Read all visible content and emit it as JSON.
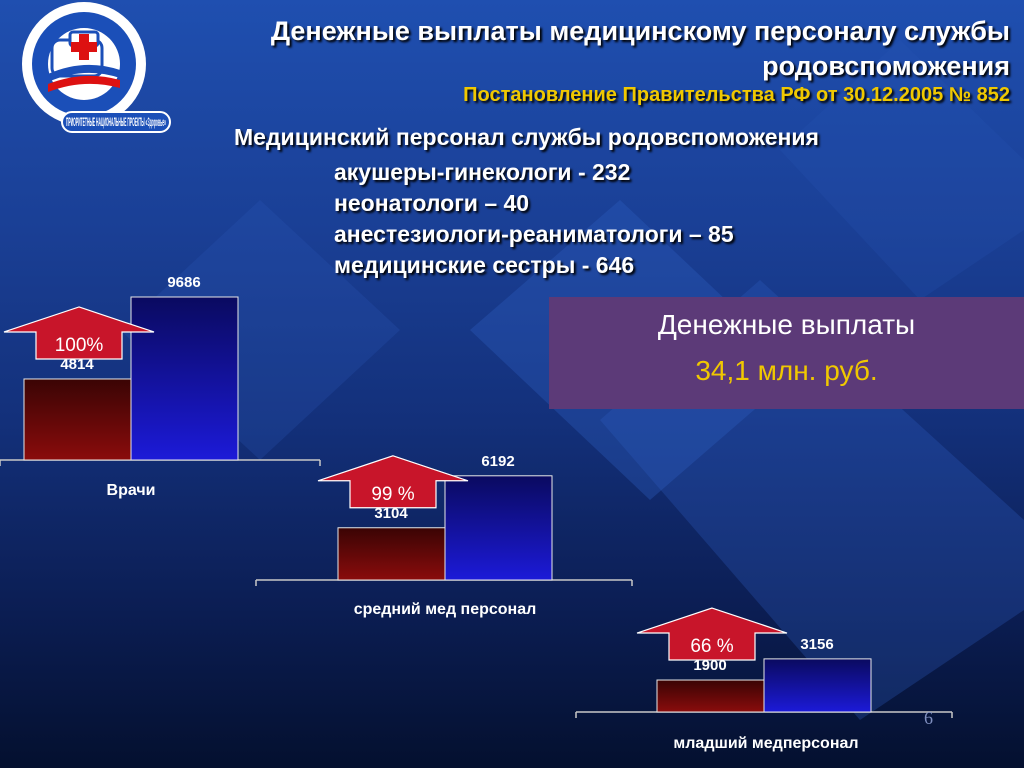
{
  "header": {
    "title": "Денежные выплаты медицинскому персоналу службы родовспоможения",
    "subtitle": "Постановление Правительства РФ от 30.12.2005  № 852"
  },
  "logo": {
    "text": "ПРИОРИТЕТНЫЕ НАЦИОНАЛЬНЫЕ ПРОЕКТЫ «Здоровье»",
    "icon": "ambulance-cross-icon"
  },
  "staff": {
    "heading": "Медицинский персонал службы родовспоможения",
    "items": [
      "акушеры-гинекологи - 232",
      "неонатологи – 40",
      "анестезиологи-реаниматологи – 85",
      "медицинские сестры - 646"
    ]
  },
  "payout": {
    "label": "Денежные выплаты",
    "amount": "34,1 млн. руб."
  },
  "slide_number": "6",
  "colors": {
    "before_bar": "#8a0c0c",
    "after_bar": "#1c1ad8",
    "arrow": "#c8152a",
    "accent_yellow": "#f0c800",
    "payout_box": "#5c3a78"
  },
  "chart_data": {
    "type": "bar",
    "groups": [
      {
        "category": "Врачи",
        "values": [
          4814,
          9686
        ],
        "labels": [
          "4814",
          "9686"
        ],
        "increase": "100%"
      },
      {
        "category": "средний мед персонал",
        "values": [
          3104,
          6192
        ],
        "labels": [
          "3104",
          "6192"
        ],
        "increase": "99 %"
      },
      {
        "category": "младший медперсонал",
        "values": [
          1900,
          3156
        ],
        "labels": [
          "1900",
          "3156"
        ],
        "increase": "66 %"
      }
    ]
  }
}
